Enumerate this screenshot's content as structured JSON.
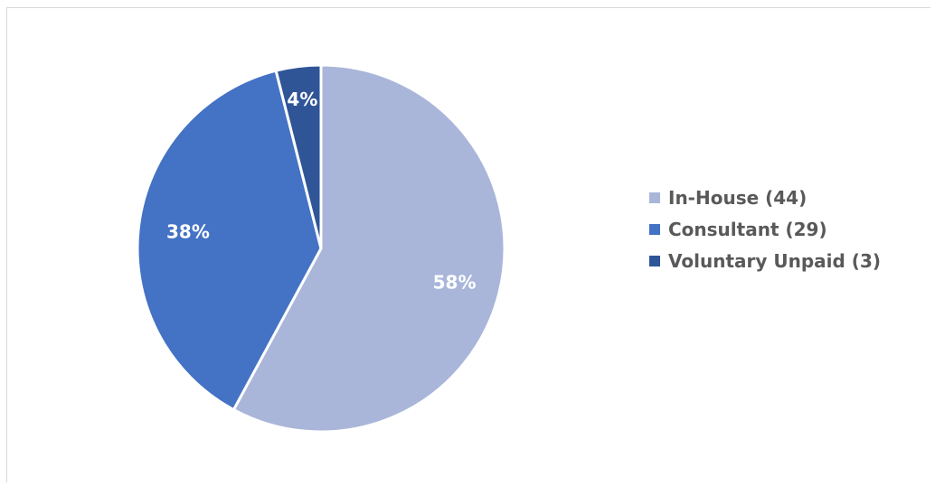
{
  "chart_data": {
    "type": "pie",
    "title": "",
    "categories": [
      "In-House (44)",
      "Consultant (29)",
      "Voluntary Unpaid (3)"
    ],
    "values": [
      44,
      29,
      3
    ],
    "data_labels": [
      "58%",
      "38%",
      "4%"
    ],
    "colors": [
      "#a9b6da",
      "#4472c4",
      "#2f5597"
    ],
    "legend_placement": "right",
    "start_angle_degrees": 0,
    "direction": "clockwise"
  }
}
